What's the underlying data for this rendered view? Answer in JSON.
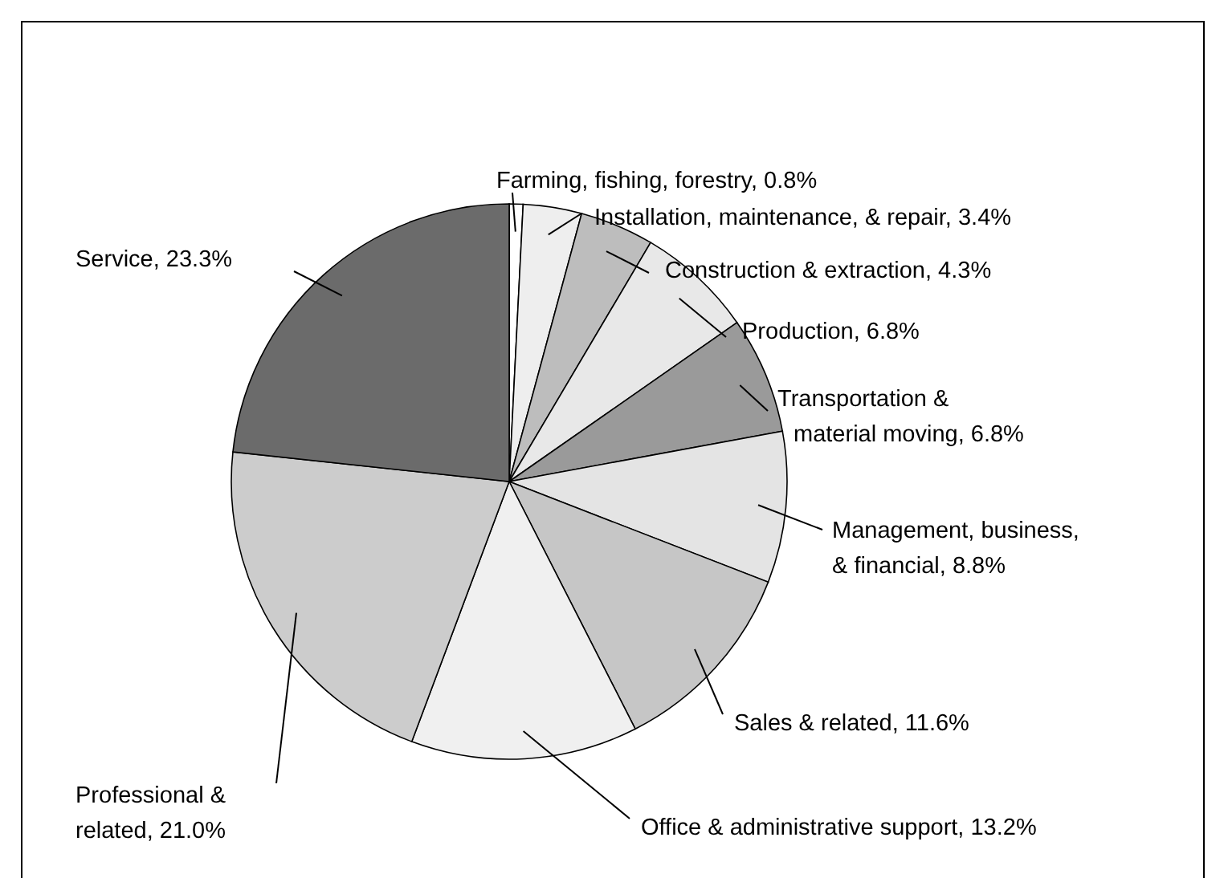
{
  "chart_data": {
    "type": "pie",
    "categories": [
      "Farming, fishing, forestry",
      "Installation, maintenance, & repair",
      "Construction & extraction",
      "Production",
      "Transportation & material moving",
      "Management, business, & financial",
      "Sales & related",
      "Office & administrative support",
      "Professional & related",
      "Service"
    ],
    "values": [
      0.8,
      3.4,
      4.3,
      6.8,
      6.8,
      8.8,
      11.6,
      13.2,
      21.0,
      23.3
    ],
    "value_labels": [
      "0.8%",
      "3.4%",
      "4.3%",
      "6.8%",
      "6.8%",
      "8.8%",
      "11.6%",
      "13.2%",
      "21.0%",
      "23.3%"
    ],
    "colors": [
      "#ffffff",
      "#eeeeee",
      "#bdbdbd",
      "#e8e8e8",
      "#9a9a9a",
      "#e4e4e4",
      "#c6c6c6",
      "#f0f0f0",
      "#cccccc",
      "#6b6b6b"
    ]
  }
}
